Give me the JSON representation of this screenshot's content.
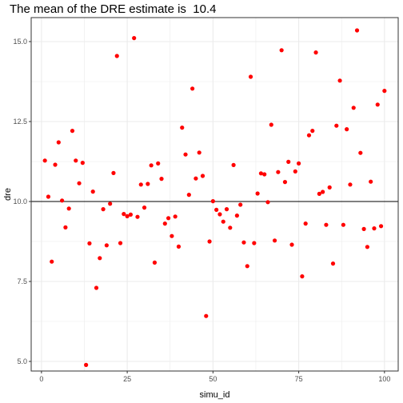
{
  "chart_data": {
    "type": "scatter",
    "title": "The mean of the DRE estimate is  10.4",
    "xlabel": "simu_id",
    "ylabel": "dre",
    "xlim": [
      -3,
      104
    ],
    "ylim": [
      4.7,
      15.75
    ],
    "x_ticks": [
      0,
      25,
      50,
      75,
      100
    ],
    "x_tick_labels": [
      "0",
      "25",
      "50",
      "75",
      "100"
    ],
    "y_ticks": [
      5.0,
      7.5,
      10.0,
      12.5,
      15.0
    ],
    "y_tick_labels": [
      "5.0",
      "7.5",
      "10.0",
      "12.5",
      "15.0"
    ],
    "reference_line": {
      "y": 10.0,
      "color": "#000000"
    },
    "grid": true,
    "point_color": "#ff0000",
    "panel_border_color": "#333333",
    "grid_color": "#ebebeb",
    "points": {
      "x": [
        1,
        2,
        3,
        4,
        5,
        6,
        7,
        8,
        9,
        10,
        11,
        12,
        13,
        14,
        15,
        16,
        17,
        18,
        19,
        20,
        21,
        22,
        23,
        24,
        25,
        26,
        27,
        28,
        29,
        30,
        31,
        32,
        33,
        34,
        35,
        36,
        37,
        38,
        39,
        40,
        41,
        42,
        43,
        44,
        45,
        46,
        47,
        48,
        49,
        50,
        51,
        52,
        53,
        54,
        55,
        56,
        57,
        58,
        59,
        60,
        61,
        62,
        63,
        64,
        65,
        66,
        67,
        68,
        69,
        70,
        71,
        72,
        73,
        74,
        75,
        76,
        77,
        78,
        79,
        80,
        81,
        82,
        83,
        84,
        85,
        86,
        87,
        88,
        89,
        90,
        91,
        92,
        93,
        94,
        95,
        96,
        97,
        98,
        99,
        100
      ],
      "y": [
        11.28,
        10.15,
        8.12,
        11.15,
        11.85,
        10.03,
        9.19,
        9.78,
        12.21,
        11.28,
        10.57,
        11.21,
        4.89,
        8.69,
        10.31,
        7.3,
        8.23,
        9.76,
        8.63,
        9.93,
        10.89,
        14.55,
        8.7,
        9.61,
        9.54,
        9.59,
        15.11,
        9.52,
        10.53,
        9.81,
        10.55,
        11.13,
        8.09,
        11.19,
        10.71,
        9.31,
        9.48,
        8.92,
        9.53,
        8.59,
        12.31,
        11.47,
        10.21,
        13.53,
        10.72,
        11.53,
        10.8,
        6.42,
        8.75,
        10.01,
        9.74,
        9.6,
        9.37,
        9.76,
        9.18,
        11.14,
        9.56,
        9.9,
        8.72,
        7.98,
        13.9,
        8.7,
        10.25,
        10.88,
        10.85,
        9.98,
        12.4,
        8.78,
        10.92,
        14.73,
        10.61,
        11.24,
        8.65,
        10.94,
        11.19,
        7.66,
        9.31,
        12.07,
        12.21,
        14.66,
        10.24,
        10.3,
        9.27,
        10.44,
        8.06,
        12.37,
        13.78,
        9.27,
        12.26,
        10.53,
        12.93,
        15.35,
        11.52,
        9.14,
        8.58,
        10.62,
        9.16,
        13.03,
        9.23,
        13.46
      ]
    }
  }
}
